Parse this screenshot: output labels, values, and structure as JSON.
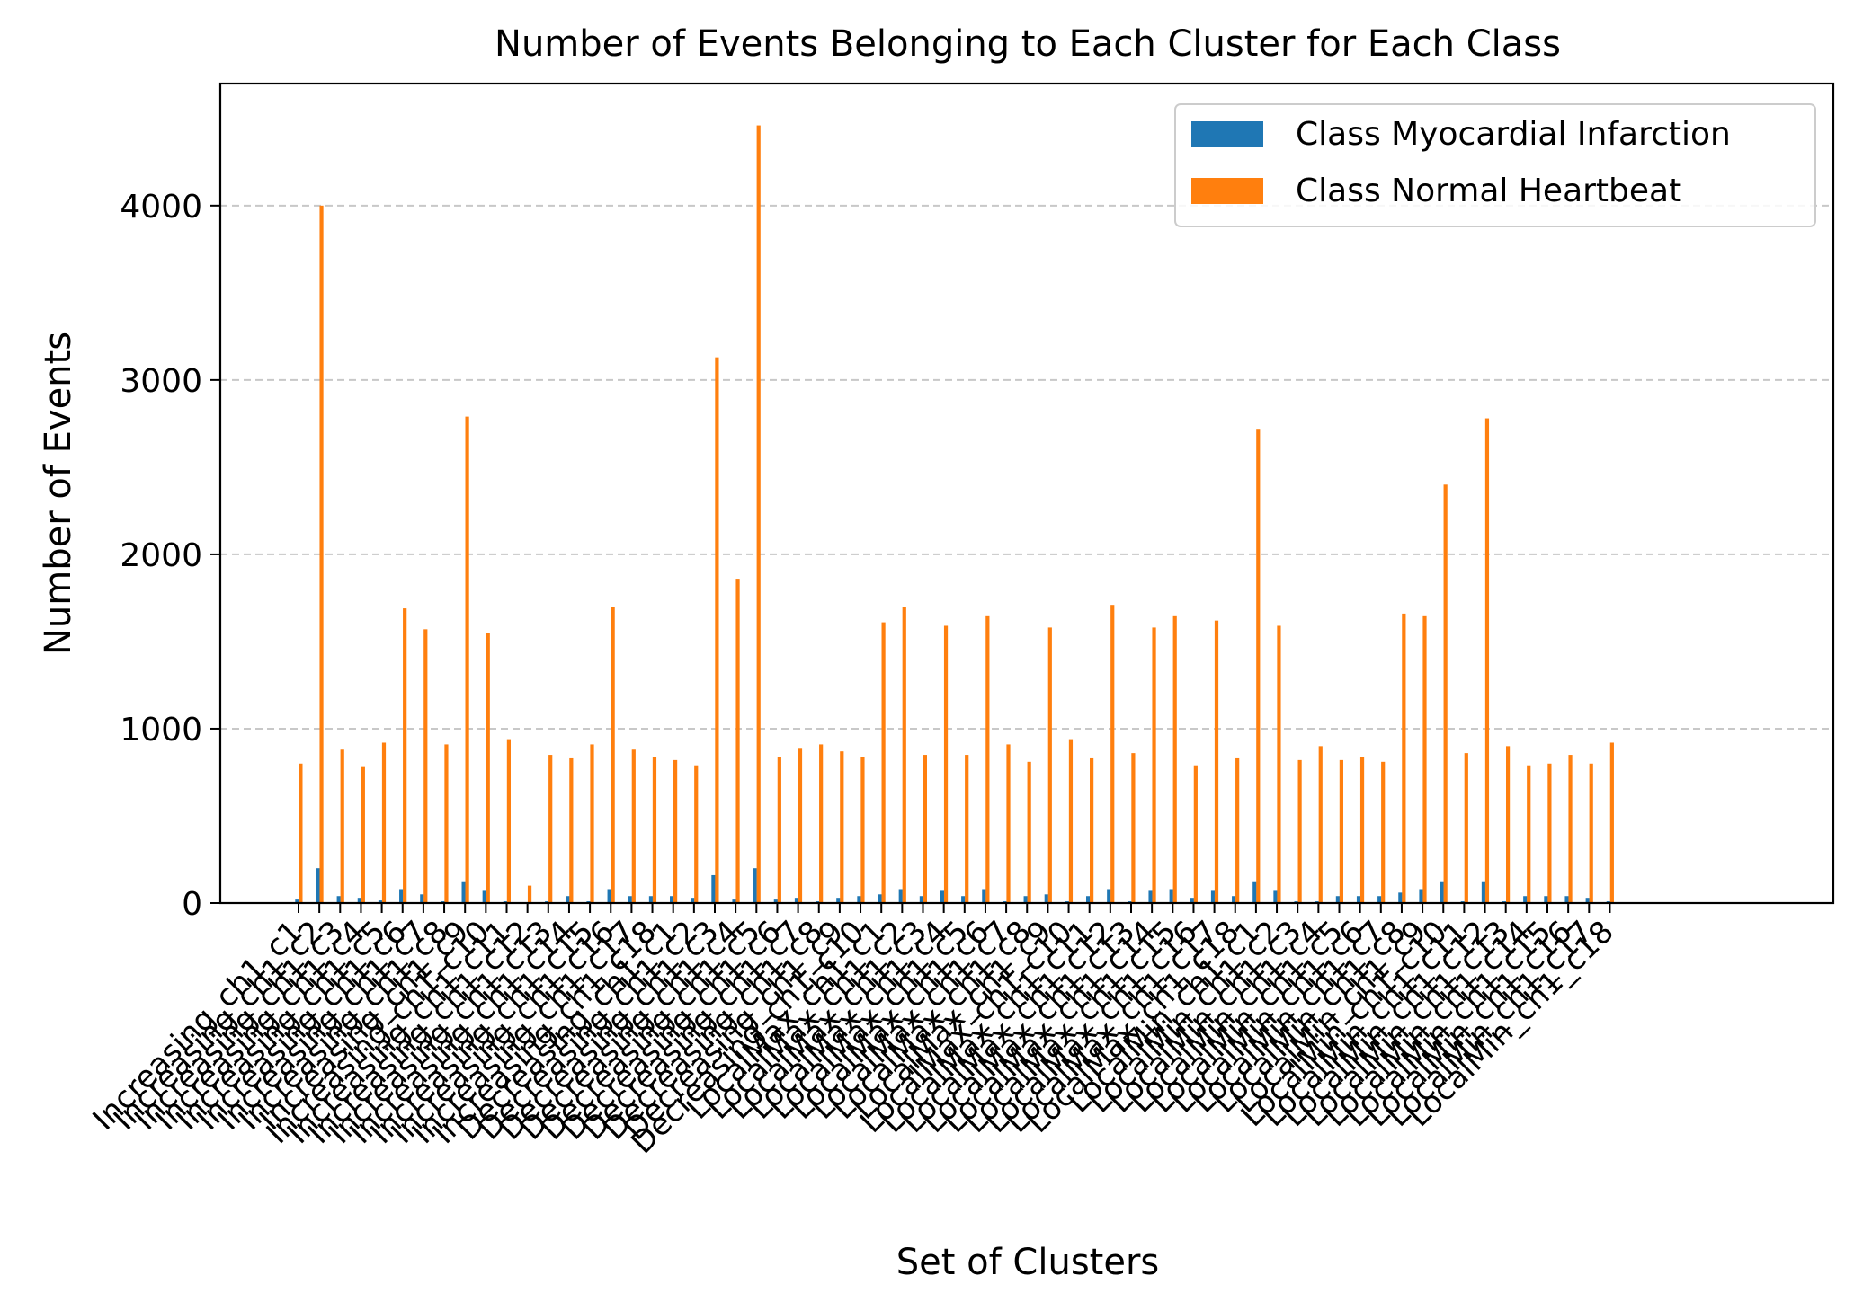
{
  "chart_data": {
    "type": "bar",
    "title": "Number of Events Belonging to Each Cluster for Each Class",
    "xlabel": "Set of Clusters",
    "ylabel": "Number of Events",
    "ylim": [
      0,
      4700
    ],
    "yticks": [
      0,
      1000,
      2000,
      3000,
      4000
    ],
    "grid": "y, dashed",
    "legend_position": "top-right",
    "x_tick_labels_readable": false,
    "categories": [
      "Increasing_ch1_c1",
      "Increasing_ch1_c2",
      "Increasing_ch1_c3",
      "Increasing_ch1_c4",
      "Increasing_ch1_c5",
      "Increasing_ch1_c6",
      "Increasing_ch1_c7",
      "Increasing_ch1_c8",
      "Increasing_ch1_c9",
      "Increasing_ch1_c10",
      "Increasing_ch1_c11",
      "Increasing_ch1_c12",
      "Increasing_ch1_c13",
      "Increasing_ch1_c14",
      "Increasing_ch1_c15",
      "Increasing_ch1_c16",
      "Increasing_ch1_c17",
      "Increasing_ch1_c18",
      "Decreasing_ch1_c1",
      "Decreasing_ch1_c2",
      "Decreasing_ch1_c3",
      "Decreasing_ch1_c4",
      "Decreasing_ch1_c5",
      "Decreasing_ch1_c6",
      "Decreasing_ch1_c7",
      "Decreasing_ch1_c8",
      "Decreasing_ch1_c9",
      "Decreasing_ch1_c10",
      "LocalMax_ch1_c1",
      "LocalMax_ch1_c2",
      "LocalMax_ch1_c3",
      "LocalMax_ch1_c4",
      "LocalMax_ch1_c5",
      "LocalMax_ch1_c6",
      "LocalMax_ch1_c7",
      "LocalMax_ch1_c8",
      "LocalMax_ch1_c9",
      "LocalMax_ch1_c10",
      "LocalMax_ch1_c11",
      "LocalMax_ch1_c12",
      "LocalMax_ch1_c13",
      "LocalMax_ch1_c14",
      "LocalMax_ch1_c15",
      "LocalMax_ch1_c16",
      "LocalMax_ch1_c17",
      "LocalMax_ch1_c18",
      "LocalMin_ch1_c1",
      "LocalMin_ch1_c2",
      "LocalMin_ch1_c3",
      "LocalMin_ch1_c4",
      "LocalMin_ch1_c5",
      "LocalMin_ch1_c6",
      "LocalMin_ch1_c7",
      "LocalMin_ch1_c8",
      "LocalMin_ch1_c9",
      "LocalMin_ch1_c10",
      "LocalMin_ch1_c11",
      "LocalMin_ch1_c12",
      "LocalMin_ch1_c13",
      "LocalMin_ch1_c14",
      "LocalMin_ch1_c15",
      "LocalMin_ch1_c16",
      "LocalMin_ch1_c17",
      "LocalMin_ch1_c18"
    ],
    "series": [
      {
        "name": "Class Myocardial Infarction",
        "color": "#1f77b4",
        "values": [
          20,
          200,
          40,
          30,
          15,
          80,
          50,
          10,
          120,
          70,
          10,
          5,
          10,
          40,
          10,
          80,
          40,
          40,
          40,
          30,
          160,
          20,
          200,
          20,
          30,
          10,
          30,
          40,
          50,
          80,
          40,
          70,
          40,
          80,
          10,
          40,
          50,
          10,
          40,
          80,
          10,
          70,
          80,
          30,
          70,
          40,
          120,
          70,
          10,
          10,
          40,
          40,
          40,
          60,
          80,
          120,
          10,
          120,
          10,
          40,
          40,
          40,
          30,
          10
        ]
      },
      {
        "name": "Class Normal Heartbeat",
        "color": "#ff7f0e",
        "values": [
          800,
          4000,
          880,
          780,
          920,
          1690,
          1570,
          910,
          2790,
          1550,
          940,
          100,
          850,
          830,
          910,
          1700,
          880,
          840,
          820,
          790,
          3130,
          1860,
          4460,
          840,
          890,
          910,
          870,
          840,
          1610,
          1700,
          850,
          1590,
          850,
          1650,
          910,
          810,
          1580,
          940,
          830,
          1710,
          860,
          1580,
          1650,
          790,
          1620,
          830,
          2720,
          1590,
          820,
          900,
          820,
          840,
          810,
          1660,
          1650,
          2400,
          860,
          2780,
          900,
          790,
          800,
          850,
          800,
          920
        ]
      }
    ]
  }
}
